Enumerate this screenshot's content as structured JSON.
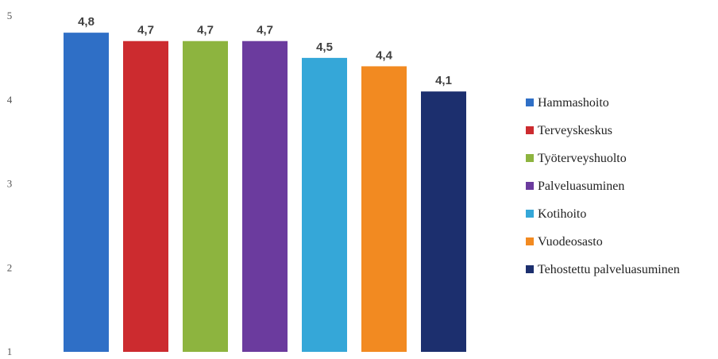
{
  "chart_data": {
    "type": "bar",
    "title": "",
    "xlabel": "",
    "ylabel": "",
    "ylim": [
      1,
      5
    ],
    "yticks": [
      1,
      2,
      3,
      4,
      5
    ],
    "grid": false,
    "legend_position": "right",
    "categories": [
      "Hammashoito",
      "Terveyskeskus",
      "Työterveyshuolto",
      "Palveluasuminen",
      "Kotihoito",
      "Vuodeosasto",
      "Tehostettu palveluasuminen"
    ],
    "values": [
      4.8,
      4.7,
      4.7,
      4.7,
      4.5,
      4.4,
      4.1
    ],
    "data_labels": [
      "4,8",
      "4,7",
      "4,7",
      "4,7",
      "4,5",
      "4,4",
      "4,1"
    ],
    "colors": [
      "#2f6fc6",
      "#cc2b2f",
      "#8db43f",
      "#6b3b9e",
      "#35a7d8",
      "#f28a21",
      "#1c2f6e"
    ]
  }
}
